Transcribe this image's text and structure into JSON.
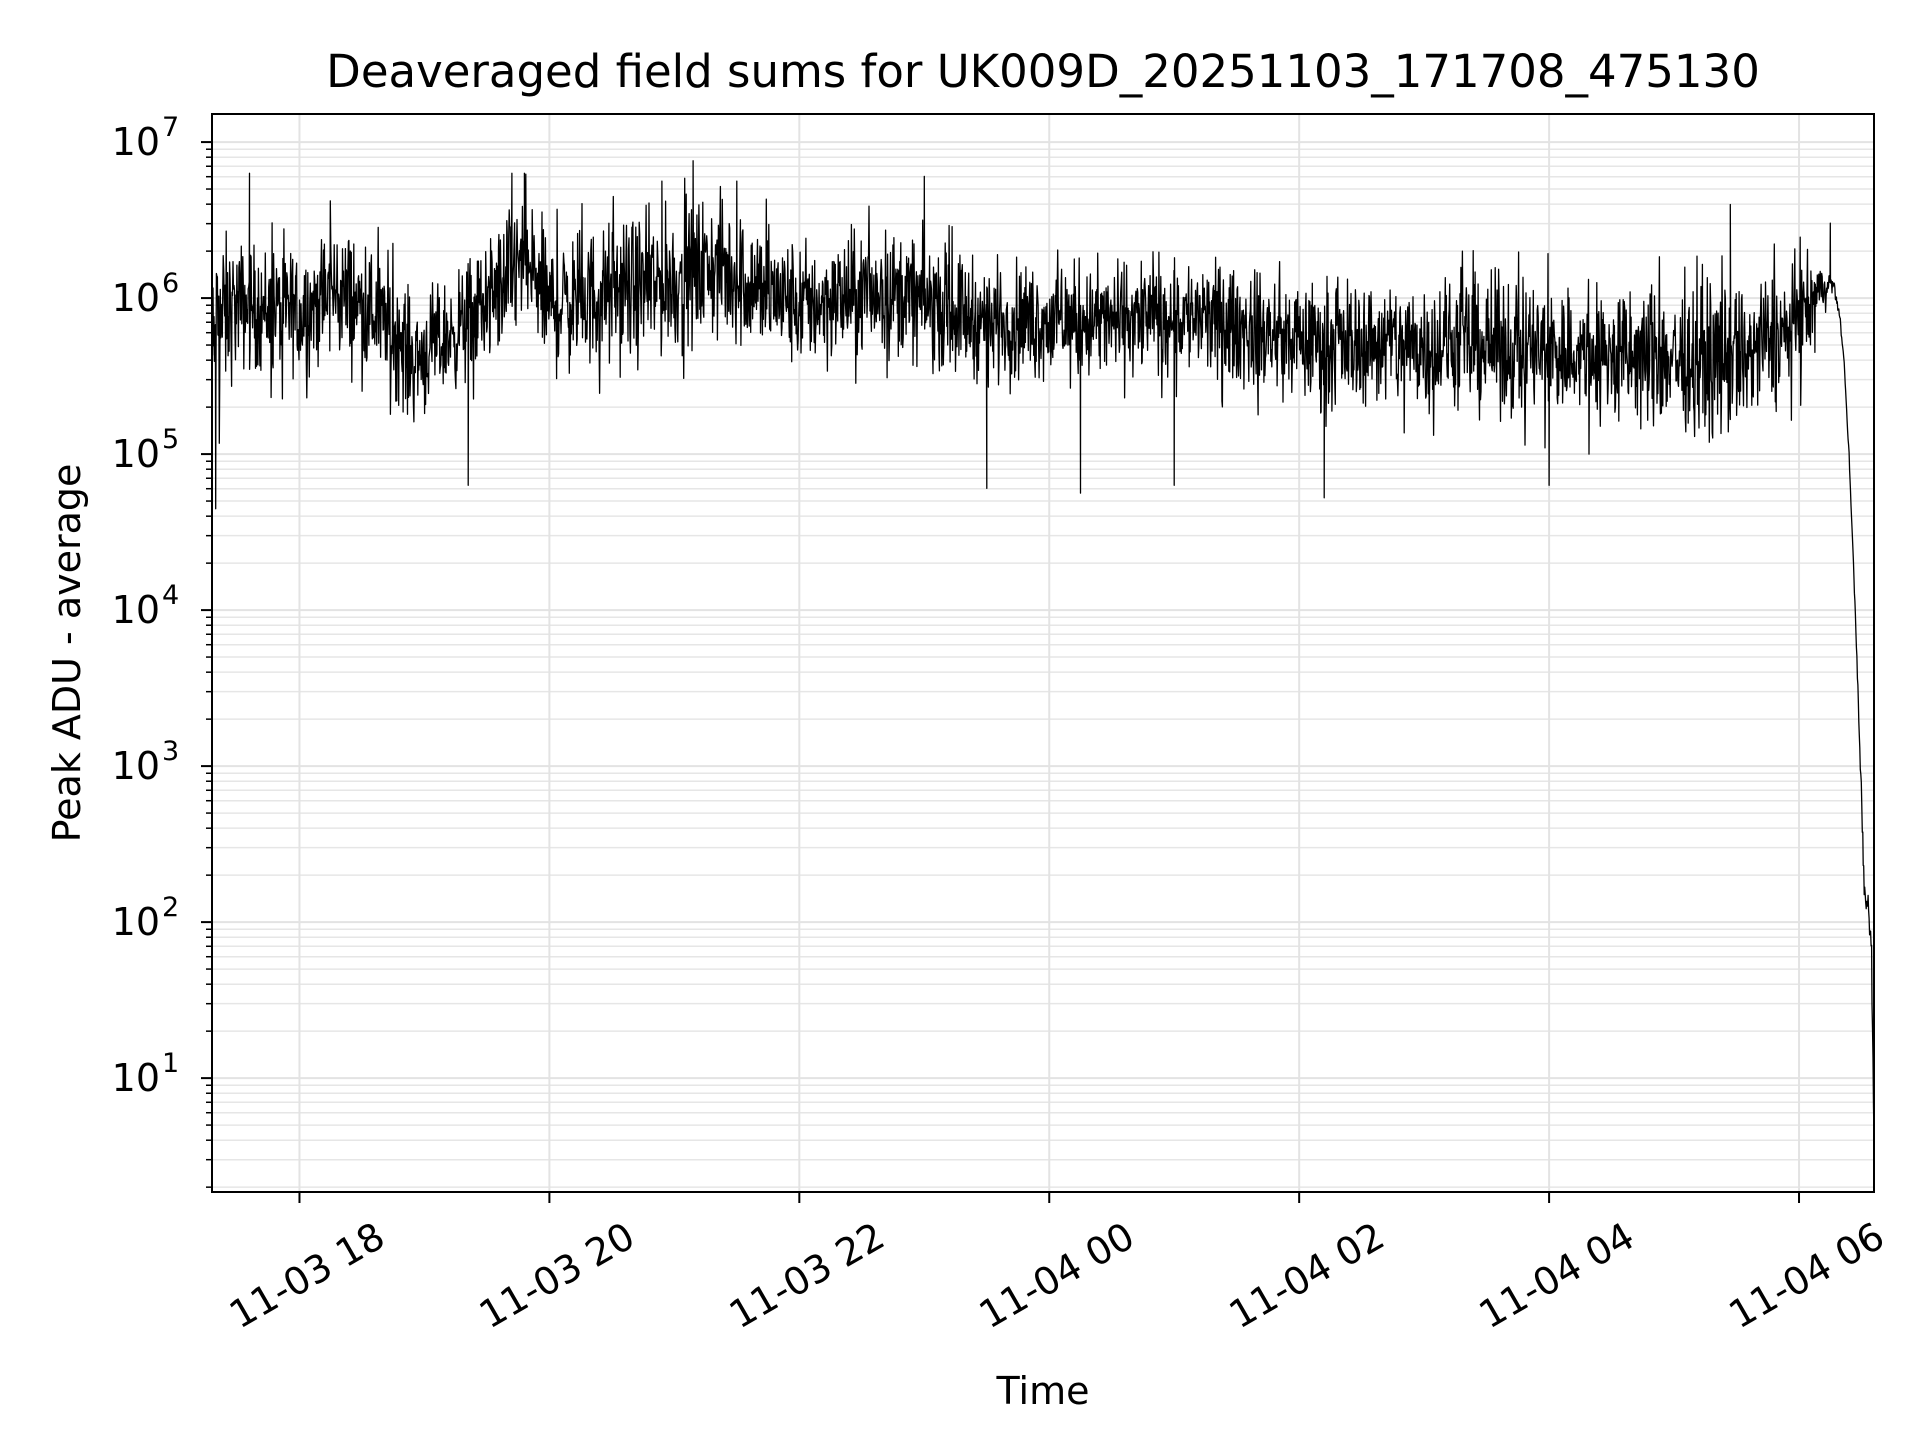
{
  "chart_data": {
    "type": "line",
    "title": "Deaveraged field sums for UK009D_20251103_171708_475130",
    "xlabel": "Time",
    "ylabel": "Peak ADU - average",
    "yscale": "log",
    "grid": true,
    "xlim_hours": [
      17.3,
      30.6
    ],
    "ylim_log10": [
      0.27,
      7.18
    ],
    "x_ticks": [
      {
        "hour": 18,
        "label": "11-03 18"
      },
      {
        "hour": 20,
        "label": "11-03 20"
      },
      {
        "hour": 22,
        "label": "11-03 22"
      },
      {
        "hour": 24,
        "label": "11-04 00"
      },
      {
        "hour": 26,
        "label": "11-04 02"
      },
      {
        "hour": 28,
        "label": "11-04 04"
      },
      {
        "hour": 30,
        "label": "11-04 06"
      }
    ],
    "y_ticks": [
      {
        "exp": 1,
        "base": "10",
        "sup": "1"
      },
      {
        "exp": 2,
        "base": "10",
        "sup": "2"
      },
      {
        "exp": 3,
        "base": "10",
        "sup": "3"
      },
      {
        "exp": 4,
        "base": "10",
        "sup": "4"
      },
      {
        "exp": 5,
        "base": "10",
        "sup": "5"
      },
      {
        "exp": 6,
        "base": "10",
        "sup": "6"
      },
      {
        "exp": 7,
        "base": "10",
        "sup": "7"
      }
    ],
    "series": [
      {
        "name": "Peak ADU - average",
        "color": "#000000",
        "note": "Noisy series; trend given as log10 values with fluctuation band (log10 units)",
        "trend": [
          {
            "hour": 17.3,
            "log10": 5.6,
            "band": 0.5
          },
          {
            "hour": 17.35,
            "log10": 5.85,
            "band": 0.5
          },
          {
            "hour": 17.5,
            "log10": 5.95,
            "band": 0.35
          },
          {
            "hour": 18.0,
            "log10": 5.9,
            "band": 0.35
          },
          {
            "hour": 18.3,
            "log10": 6.05,
            "band": 0.38
          },
          {
            "hour": 18.7,
            "log10": 5.85,
            "band": 0.35
          },
          {
            "hour": 18.9,
            "log10": 5.6,
            "band": 0.35
          },
          {
            "hour": 19.2,
            "log10": 5.75,
            "band": 0.3
          },
          {
            "hour": 19.6,
            "log10": 6.05,
            "band": 0.38
          },
          {
            "hour": 19.8,
            "log10": 6.25,
            "band": 0.4
          },
          {
            "hour": 20.0,
            "log10": 5.95,
            "band": 0.38
          },
          {
            "hour": 21.0,
            "log10": 6.1,
            "band": 0.4
          },
          {
            "hour": 21.3,
            "log10": 6.2,
            "band": 0.4
          },
          {
            "hour": 22.0,
            "log10": 5.95,
            "band": 0.35
          },
          {
            "hour": 22.7,
            "log10": 6.05,
            "band": 0.35
          },
          {
            "hour": 23.5,
            "log10": 5.85,
            "band": 0.33
          },
          {
            "hour": 24.5,
            "log10": 5.85,
            "band": 0.33
          },
          {
            "hour": 25.0,
            "log10": 5.9,
            "band": 0.33
          },
          {
            "hour": 26.0,
            "log10": 5.72,
            "band": 0.33
          },
          {
            "hour": 27.5,
            "log10": 5.7,
            "band": 0.38
          },
          {
            "hour": 28.5,
            "log10": 5.62,
            "band": 0.4
          },
          {
            "hour": 29.5,
            "log10": 5.6,
            "band": 0.42
          },
          {
            "hour": 30.0,
            "log10": 5.82,
            "band": 0.36
          },
          {
            "hour": 30.2,
            "log10": 6.08,
            "band": 0.12
          },
          {
            "hour": 30.28,
            "log10": 6.08,
            "band": 0.04
          },
          {
            "hour": 30.33,
            "log10": 5.85,
            "band": 0.02
          },
          {
            "hour": 30.36,
            "log10": 5.6,
            "band": 0.02
          },
          {
            "hour": 30.4,
            "log10": 5.0,
            "band": 0.02
          },
          {
            "hour": 30.45,
            "log10": 4.0,
            "band": 0.02
          },
          {
            "hour": 30.5,
            "log10": 2.8,
            "band": 0.05
          },
          {
            "hour": 30.52,
            "log10": 2.2,
            "band": 0.1
          },
          {
            "hour": 30.56,
            "log10": 2.05,
            "band": 0.1
          },
          {
            "hour": 30.58,
            "log10": 1.8,
            "band": 0.1
          },
          {
            "hour": 30.6,
            "log10": 0.6,
            "band": 0.02
          }
        ],
        "notable_spikes": [
          {
            "hour": 17.33,
            "log10": 4.65
          },
          {
            "hour": 17.6,
            "log10": 6.8
          },
          {
            "hour": 19.35,
            "log10": 4.8
          },
          {
            "hour": 19.7,
            "log10": 6.8
          },
          {
            "hour": 19.8,
            "log10": 6.8
          },
          {
            "hour": 20.9,
            "log10": 6.75
          },
          {
            "hour": 21.15,
            "log10": 6.88
          },
          {
            "hour": 21.5,
            "log10": 6.75
          },
          {
            "hour": 23.0,
            "log10": 6.78
          },
          {
            "hour": 23.5,
            "log10": 4.78
          },
          {
            "hour": 24.25,
            "log10": 4.75
          },
          {
            "hour": 25.0,
            "log10": 4.8
          },
          {
            "hour": 26.2,
            "log10": 4.72
          },
          {
            "hour": 28.0,
            "log10": 4.8
          },
          {
            "hour": 29.45,
            "log10": 6.6
          },
          {
            "hour": 30.25,
            "log10": 6.48
          }
        ]
      }
    ]
  }
}
